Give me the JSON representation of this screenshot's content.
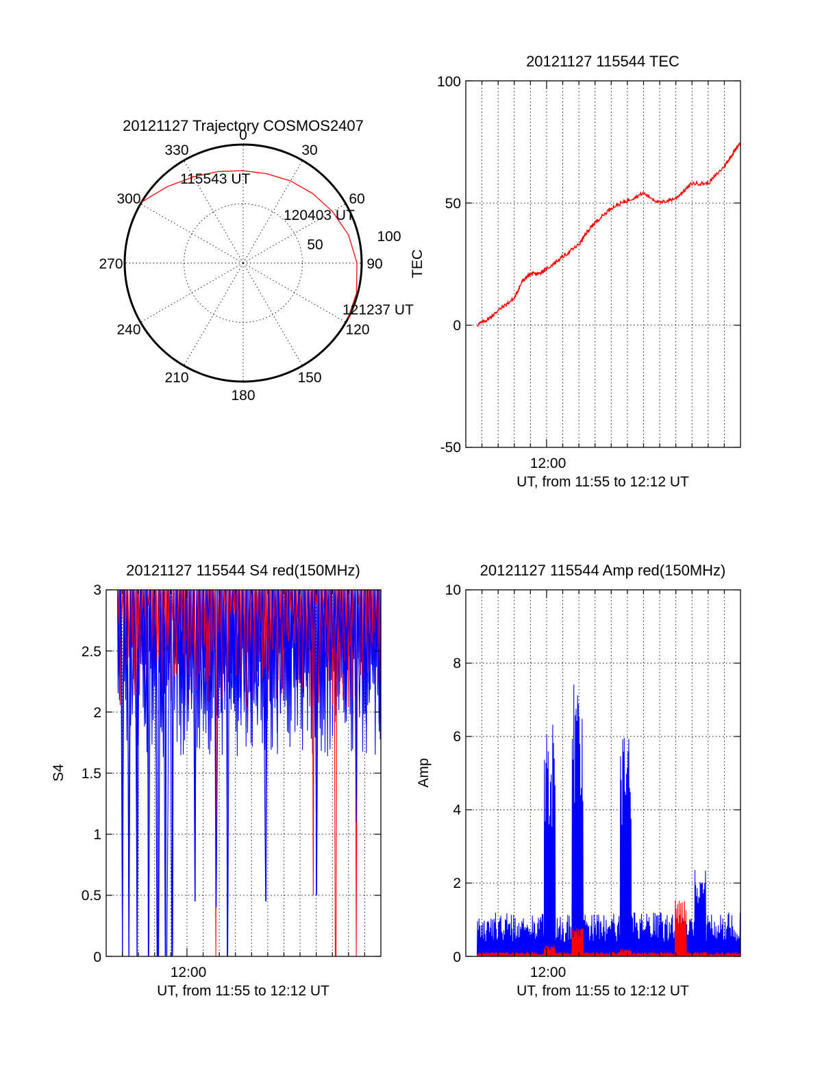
{
  "colors": {
    "red": "#ff0000",
    "blue": "#0000ff",
    "axes": "#000000"
  },
  "chart_data": [
    {
      "type": "polar-trajectory",
      "title": "20121127 Trajectory COSMOS2407",
      "angle_ticks": [
        "0",
        "30",
        "60",
        "90",
        "120",
        "150",
        "180",
        "210",
        "240",
        "270",
        "300",
        "330"
      ],
      "radial_ticks": [
        "50",
        "100"
      ],
      "rlim": [
        0,
        100
      ],
      "grid": true,
      "start_label": "115543 UT",
      "mid_label": "120403 UT",
      "end_label": "121237 UT",
      "track": {
        "color": "red",
        "azimuth_deg": [
          301,
          315,
          330,
          345,
          0,
          15,
          30,
          45,
          60,
          75,
          90,
          105,
          118
        ],
        "radius": [
          100,
          91,
          84,
          80,
          78,
          78,
          80,
          83,
          87,
          92,
          96,
          99,
          100
        ]
      }
    },
    {
      "type": "line",
      "title": "20121127 115544 TEC",
      "xlabel": "UT, from 11:55 to 12:12 UT",
      "ylabel": "TEC",
      "xlim": [
        "11:55",
        "12:12"
      ],
      "ylim": [
        -50,
        100
      ],
      "x_tick_labels": [
        "12:00"
      ],
      "y_tick_labels": [
        "100",
        "50",
        "0",
        "-50"
      ],
      "grid": true,
      "series": [
        {
          "color": "red",
          "x_minutes_after_1155": [
            0.7,
            1.5,
            2,
            3,
            3.5,
            4,
            4.5,
            5,
            6,
            7,
            7.5,
            8,
            9,
            10,
            11,
            12,
            13,
            14,
            15,
            16,
            16.5,
            17
          ],
          "values": [
            0,
            3,
            6,
            11,
            18,
            21,
            21,
            23,
            28,
            33,
            38,
            42,
            48,
            51,
            54,
            50,
            52,
            58,
            58,
            65,
            70,
            75
          ]
        }
      ]
    },
    {
      "type": "line",
      "title": "20121127 115544 S4 red(150MHz)",
      "xlabel": "UT, from 11:55 to 12:12 UT",
      "ylabel": "S4",
      "xlim": [
        "11:55",
        "12:12"
      ],
      "ylim": [
        0,
        3
      ],
      "x_tick_labels": [
        "12:00"
      ],
      "y_tick_labels": [
        "3",
        "2.5",
        "2",
        "1.5",
        "1",
        "0.5",
        "0"
      ],
      "grid": true,
      "series": [
        {
          "color": "blue",
          "level_upper": 3.0,
          "level_lower_typical": 1.9,
          "dips_x_minutes": [
            0.2,
            0.6,
            1,
            1.4,
            1.9,
            2.6,
            3.2,
            3.7,
            4.1,
            5.5,
            6.8,
            7.5,
            9.9,
            13,
            15.5
          ],
          "dips_values": [
            0,
            0,
            0,
            0,
            0,
            0,
            0,
            0,
            0,
            0.45,
            0.4,
            0,
            0.45,
            0.5,
            1.1
          ]
        },
        {
          "color": "red",
          "level_upper": 3.0,
          "level_lower_typical": 2.3,
          "dips_x_minutes": [
            6.8,
            12.8,
            14.2,
            15.5
          ],
          "dips_values": [
            0,
            0.5,
            0,
            0
          ]
        }
      ]
    },
    {
      "type": "line",
      "title": "20121127 115544 Amp red(150MHz)",
      "xlabel": "UT, from 11:55 to 12:12 UT",
      "ylabel": "Amp",
      "xlim": [
        "11:55",
        "12:12"
      ],
      "ylim": [
        0,
        10
      ],
      "x_tick_labels": [
        "12:00"
      ],
      "y_tick_labels": [
        "10",
        "8",
        "6",
        "4",
        "2",
        "0"
      ],
      "grid": true,
      "series": [
        {
          "color": "blue",
          "baseline_max": 1.0,
          "bursts_x_minutes": [
            5.2,
            6.9,
            9.9,
            14.5
          ],
          "bursts_peak": [
            6.4,
            7.5,
            6.2,
            2.6
          ]
        },
        {
          "color": "red",
          "baseline_max": 0.1,
          "bursts_x_minutes": [
            5.2,
            6.9,
            9.9,
            13.3
          ],
          "bursts_peak": [
            0.3,
            0.8,
            0.2,
            1.6
          ]
        }
      ]
    }
  ]
}
